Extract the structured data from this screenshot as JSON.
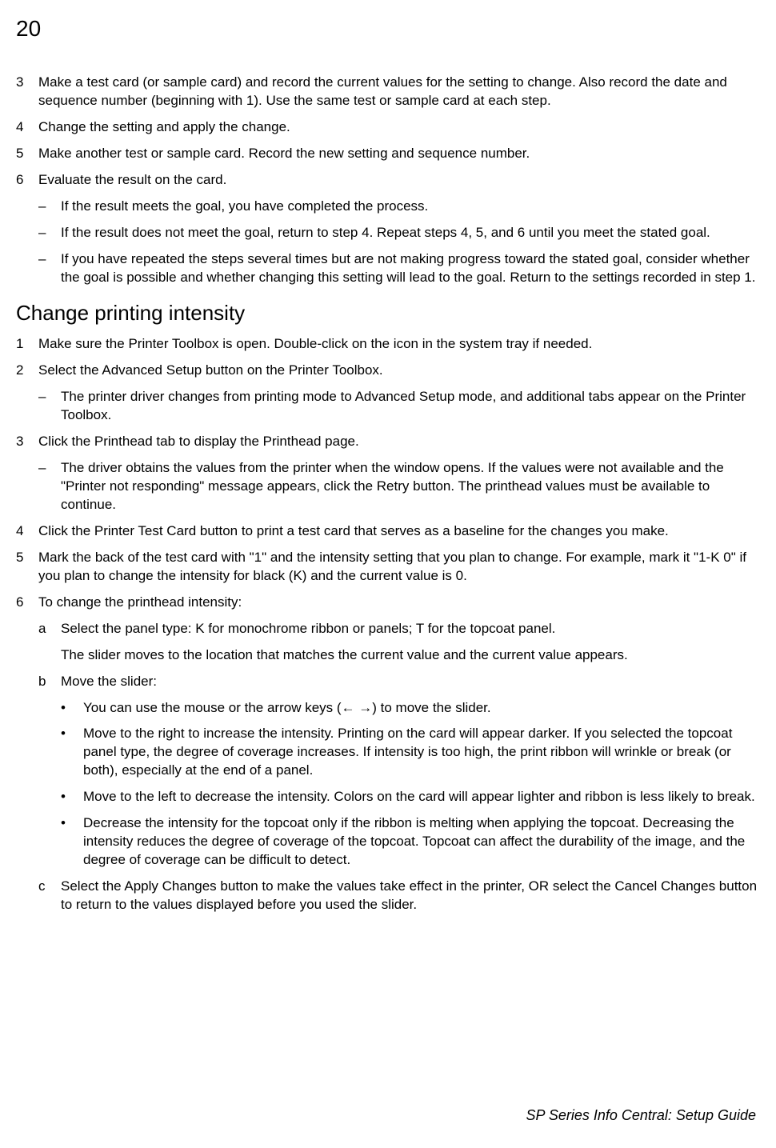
{
  "page_number": "20",
  "section1": {
    "items": [
      {
        "num": "3",
        "text": "Make a test card (or sample card) and record the current values for the setting to change. Also record the date and sequence number (beginning with 1). Use the same test or sample card at each step."
      },
      {
        "num": "4",
        "text": "Change the setting and apply the change."
      },
      {
        "num": "5",
        "text": "Make another test or sample card. Record the new setting and sequence number."
      },
      {
        "num": "6",
        "text": "Evaluate the result on the card."
      }
    ],
    "subitems": [
      {
        "mark": "–",
        "text": "If the result meets the goal, you have completed the process."
      },
      {
        "mark": "–",
        "text": "If the result does not meet the goal, return to step 4. Repeat steps 4, 5, and 6 until you meet the stated goal."
      },
      {
        "mark": "–",
        "text": "If you have repeated the steps several times but are not making progress toward the stated goal, consider whether the goal is possible and whether changing this setting will lead to the goal. Return to the settings recorded in step 1."
      }
    ]
  },
  "heading": "Change printing intensity",
  "section2": {
    "step1": {
      "num": "1",
      "text": "Make sure the Printer Toolbox is open. Double-click on the icon in the system tray if needed."
    },
    "step2": {
      "num": "2",
      "text": "Select the Advanced Setup button on the Printer Toolbox."
    },
    "step2_sub": [
      {
        "mark": "–",
        "text": "The printer driver changes from printing mode to Advanced Setup mode, and additional tabs appear on the Printer Toolbox."
      }
    ],
    "step3": {
      "num": "3",
      "text": "Click the Printhead tab to display the Printhead page."
    },
    "step3_sub": [
      {
        "mark": "–",
        "text": "The driver obtains the values from the printer when the window opens. If the values were not available and the \"Printer not responding\" message appears, click the Retry button. The printhead values must be available to continue."
      }
    ],
    "step4": {
      "num": "4",
      "text": "Click the Printer Test Card button to print a test card that serves as a baseline for the changes you make."
    },
    "step5": {
      "num": "5",
      "text": "Mark the back of the test card with \"1\" and the intensity setting that you plan to change. For example, mark it \"1-K 0\" if you plan to change the intensity for black (K) and the current value is 0."
    },
    "step6": {
      "num": "6",
      "text": "To change the printhead intensity:"
    },
    "step6_a": {
      "mark": "a",
      "text": "Select the panel type: K for monochrome ribbon or panels; T for the topcoat panel."
    },
    "step6_a_extra": "The slider moves to the location that matches the current value and the current value appears.",
    "step6_b": {
      "mark": "b",
      "text": "Move the slider:"
    },
    "step6_b_bullets": [
      {
        "mark": "•",
        "text": "You can use the mouse or the arrow keys (← →) to move the slider."
      },
      {
        "mark": "•",
        "text": "Move to the right to increase the intensity. Printing on the card will appear darker. If you selected the topcoat panel type, the degree of coverage increases. If intensity is too high, the print ribbon will wrinkle or break (or both), especially at the end of a panel."
      },
      {
        "mark": "•",
        "text": "Move to the left to decrease the intensity. Colors on the card will appear lighter and ribbon is less likely to break."
      },
      {
        "mark": "•",
        "text": "Decrease the intensity for the topcoat only if the ribbon is melting when applying the topcoat. Decreasing the intensity reduces the degree of coverage of the topcoat. Topcoat can affect the durability of the image, and the degree of coverage can be difficult to detect."
      }
    ],
    "step6_c": {
      "mark": "c",
      "text": "Select the Apply Changes button to make the values take effect in the printer, OR select the Cancel Changes button to return to the values displayed before you used the slider."
    }
  },
  "footer": "SP Series Info Central: Setup Guide"
}
